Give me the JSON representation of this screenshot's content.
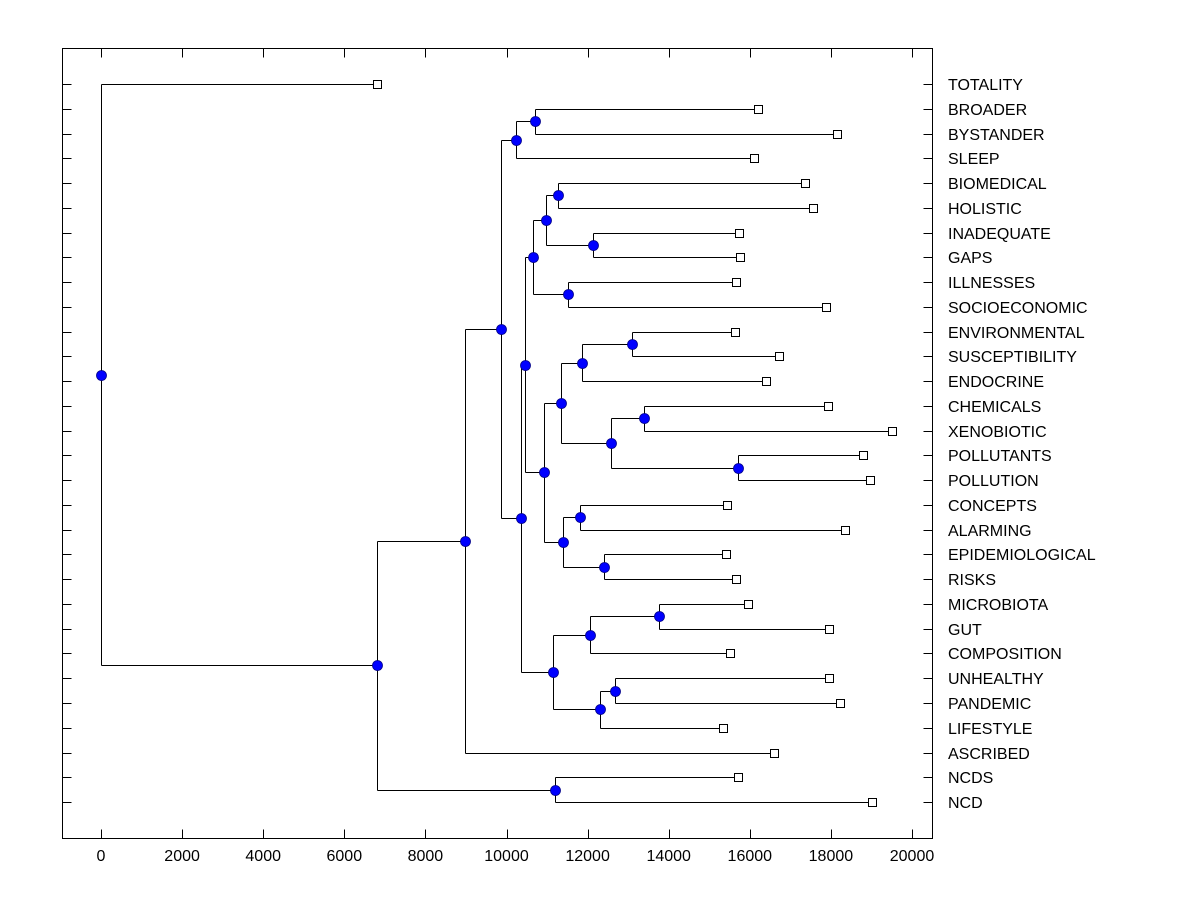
{
  "chart_data": {
    "type": "dendrogram",
    "title": "",
    "xlabel": "",
    "ylabel": "",
    "xlim": [
      -1000,
      20500
    ],
    "x_ticks": [
      0,
      2000,
      4000,
      6000,
      8000,
      10000,
      12000,
      14000,
      16000,
      18000,
      20000
    ],
    "x_tick_labels": [
      "0",
      "2000",
      "4000",
      "6000",
      "8000",
      "10000",
      "12000",
      "14000",
      "16000",
      "18000",
      "20000"
    ],
    "grid": false,
    "colors": {
      "node": "#0000ff",
      "line": "#000000",
      "leaf_marker": "#ffffff"
    },
    "leaves": [
      {
        "label": "TOTALITY",
        "x": 6810
      },
      {
        "label": "BROADER",
        "x": 16200
      },
      {
        "label": "BYSTANDER",
        "x": 18150
      },
      {
        "label": "SLEEP",
        "x": 16100
      },
      {
        "label": "BIOMEDICAL",
        "x": 17360
      },
      {
        "label": "HOLISTIC",
        "x": 17560
      },
      {
        "label": "INADEQUATE",
        "x": 15730
      },
      {
        "label": "GAPS",
        "x": 15760
      },
      {
        "label": "ILLNESSES",
        "x": 15660
      },
      {
        "label": "SOCIOECONOMIC",
        "x": 17880
      },
      {
        "label": "ENVIRONMENTAL",
        "x": 15630
      },
      {
        "label": "SUSCEPTIBILITY",
        "x": 16720
      },
      {
        "label": "ENDOCRINE",
        "x": 16400
      },
      {
        "label": "CHEMICALS",
        "x": 17930
      },
      {
        "label": "XENOBIOTIC",
        "x": 19510
      },
      {
        "label": "POLLUTANTS",
        "x": 18790
      },
      {
        "label": "POLLUTION",
        "x": 18960
      },
      {
        "label": "CONCEPTS",
        "x": 15440
      },
      {
        "label": "ALARMING",
        "x": 18350
      },
      {
        "label": "EPIDEMIOLOGICAL",
        "x": 15410
      },
      {
        "label": "RISKS",
        "x": 15660
      },
      {
        "label": "MICROBIOTA",
        "x": 15960
      },
      {
        "label": "GUT",
        "x": 17950
      },
      {
        "label": "COMPOSITION",
        "x": 15510
      },
      {
        "label": "UNHEALTHY",
        "x": 17950
      },
      {
        "label": "PANDEMIC",
        "x": 18220
      },
      {
        "label": "LIFESTYLE",
        "x": 15340
      },
      {
        "label": "ASCRIBED",
        "x": 16600
      },
      {
        "label": "NCDS",
        "x": 15710
      },
      {
        "label": "NCD",
        "x": 19010
      }
    ],
    "nodes": [
      {
        "id": "n_root",
        "x": 0,
        "children": [
          "L0",
          "n_a"
        ]
      },
      {
        "id": "n_a",
        "x": 6810,
        "children": [
          "n_b",
          "n_ncd"
        ]
      },
      {
        "id": "n_b",
        "x": 8980,
        "children": [
          "n_c",
          "L27"
        ]
      },
      {
        "id": "n_c",
        "x": 9860,
        "children": [
          "n_top",
          "n_d"
        ]
      },
      {
        "id": "n_top",
        "x": 10230,
        "children": [
          "n_bb",
          "L3"
        ]
      },
      {
        "id": "n_bb",
        "x": 10700,
        "children": [
          "L1",
          "L2"
        ]
      },
      {
        "id": "n_d",
        "x": 10360,
        "children": [
          "n_e",
          "n_micro"
        ]
      },
      {
        "id": "n_e",
        "x": 10460,
        "children": [
          "n_bio",
          "n_env"
        ]
      },
      {
        "id": "n_bio",
        "x": 10650,
        "children": [
          "n_bio2",
          "n_ill"
        ]
      },
      {
        "id": "n_bio2",
        "x": 10970,
        "children": [
          "n_bh",
          "n_ig"
        ]
      },
      {
        "id": "n_bh",
        "x": 11270,
        "children": [
          "L4",
          "L5"
        ]
      },
      {
        "id": "n_ig",
        "x": 12130,
        "children": [
          "L6",
          "L7"
        ]
      },
      {
        "id": "n_ill",
        "x": 11520,
        "children": [
          "L8",
          "L9"
        ]
      },
      {
        "id": "n_env",
        "x": 10920,
        "children": [
          "n_env2",
          "n_con"
        ]
      },
      {
        "id": "n_env2",
        "x": 11340,
        "children": [
          "n_ese",
          "n_chem"
        ]
      },
      {
        "id": "n_ese",
        "x": 11860,
        "children": [
          "n_es",
          "L12"
        ]
      },
      {
        "id": "n_es",
        "x": 13090,
        "children": [
          "L10",
          "L11"
        ]
      },
      {
        "id": "n_chem",
        "x": 12580,
        "children": [
          "n_cx",
          "n_pp"
        ]
      },
      {
        "id": "n_cx",
        "x": 13390,
        "children": [
          "L13",
          "L14"
        ]
      },
      {
        "id": "n_pp",
        "x": 15710,
        "children": [
          "L15",
          "L16"
        ]
      },
      {
        "id": "n_con",
        "x": 11390,
        "children": [
          "n_ca",
          "n_er"
        ]
      },
      {
        "id": "n_ca",
        "x": 11810,
        "children": [
          "L17",
          "L18"
        ]
      },
      {
        "id": "n_er",
        "x": 12400,
        "children": [
          "L19",
          "L20"
        ]
      },
      {
        "id": "n_micro",
        "x": 11150,
        "children": [
          "n_mgc",
          "n_upl"
        ]
      },
      {
        "id": "n_mgc",
        "x": 12060,
        "children": [
          "n_mg",
          "L23"
        ]
      },
      {
        "id": "n_mg",
        "x": 13760,
        "children": [
          "L21",
          "L22"
        ]
      },
      {
        "id": "n_upl",
        "x": 12310,
        "children": [
          "n_up",
          "L26"
        ]
      },
      {
        "id": "n_up",
        "x": 12680,
        "children": [
          "L24",
          "L25"
        ]
      },
      {
        "id": "n_ncd",
        "x": 11200,
        "children": [
          "L28",
          "L29"
        ]
      }
    ]
  }
}
